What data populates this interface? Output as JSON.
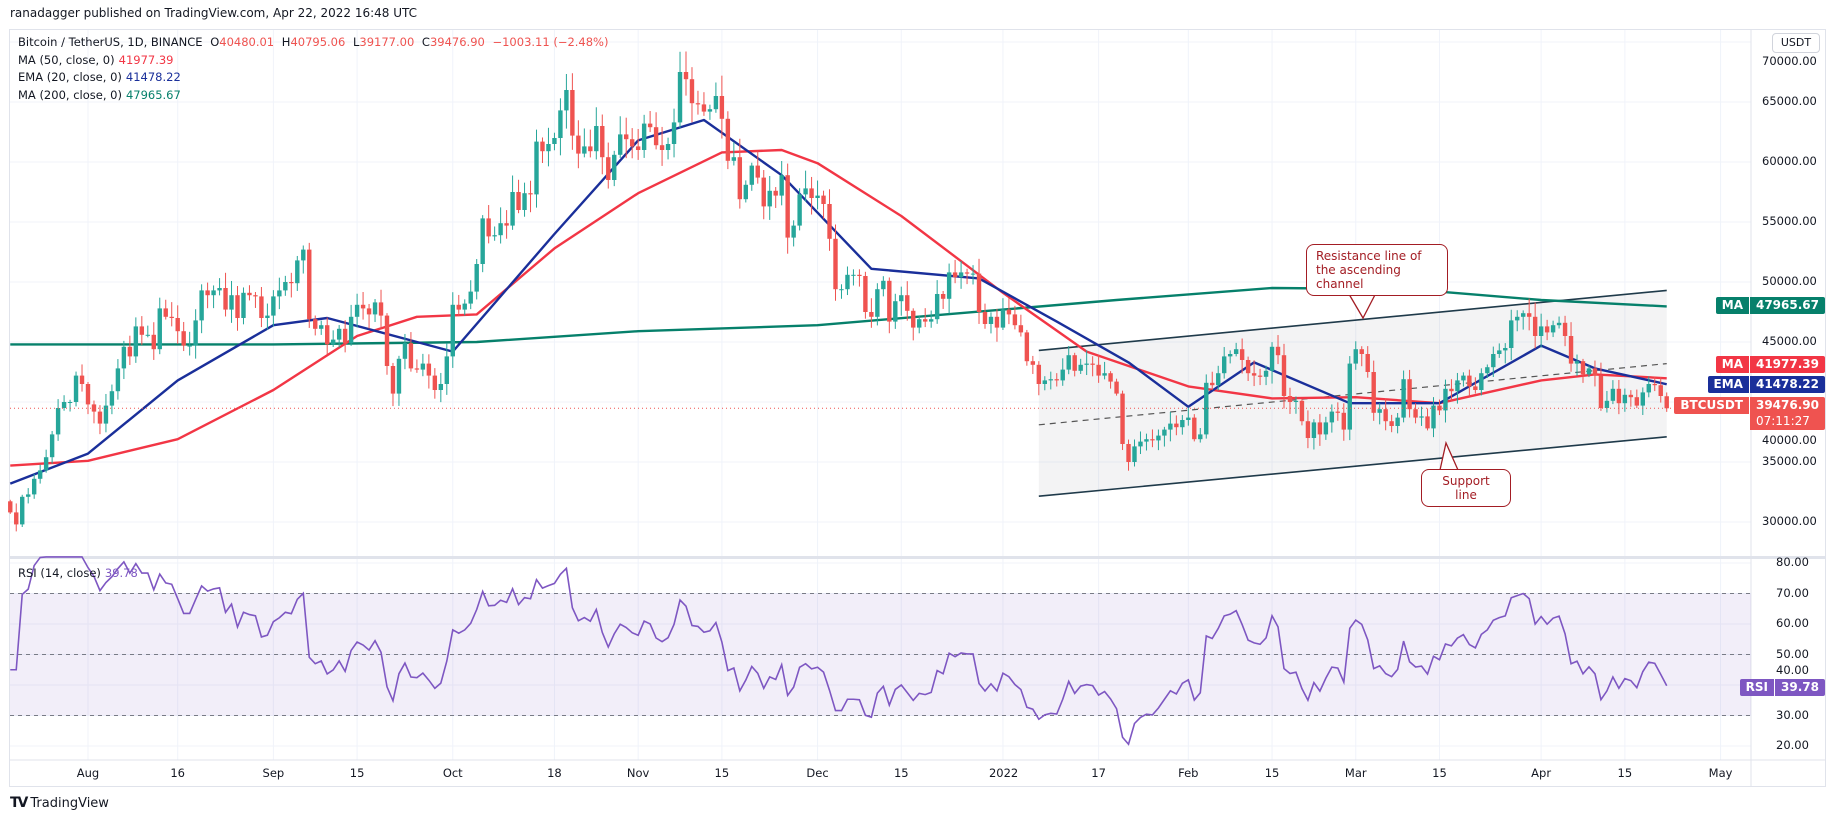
{
  "publisher": "ranadagger published on TradingView.com, Apr 22, 2022 16:48 UTC",
  "legend": {
    "symbol": "Bitcoin / TetherUS, 1D, BINANCE",
    "o_label": "O",
    "o": "40480.01",
    "h_label": "H",
    "h": "40795.06",
    "l_label": "L",
    "l": "39177.00",
    "c_label": "C",
    "c": "39476.90",
    "change": "−1003.11 (−2.48%)",
    "ma50": {
      "label": "MA (50, close, 0)",
      "value": "41977.39"
    },
    "ema20": {
      "label": "EMA (20, close, 0)",
      "value": "41478.22"
    },
    "ma200": {
      "label": "MA (200, close, 0)",
      "value": "47965.67"
    },
    "rsi": {
      "label": "RSI (14, close)",
      "value": "39.78"
    }
  },
  "currency_button": "USDT",
  "price_tags": {
    "ma200": {
      "name": "MA",
      "value": "47965.67"
    },
    "ma50": {
      "name": "MA",
      "value": "41977.39"
    },
    "ema20": {
      "name": "EMA",
      "value": "41478.22"
    },
    "last": {
      "name": "BTCUSDT",
      "value": "39476.90",
      "countdown": "07:11:27"
    },
    "rsi": {
      "name": "RSI",
      "value": "39.78"
    }
  },
  "annotations": {
    "resistance": "Resistance line of the ascending channel",
    "support": "Support line"
  },
  "footer": {
    "brand": "TradingView"
  },
  "colors": {
    "up": "#26a69a",
    "down": "#ef5350",
    "ma50": "#f23645",
    "ema20": "#1a2f9a",
    "ma200": "#06806b",
    "rsi": "#7e57c2",
    "channel": "#1f3a4a",
    "callout": "#a31d24"
  },
  "chart_data": [
    {
      "type": "candlestick",
      "title": "Bitcoin / TetherUS, 1D, BINANCE",
      "ylim": [
        28000,
        70000
      ],
      "y_ticks": [
        70000,
        65000,
        60000,
        55000,
        50000,
        45000,
        40000,
        35000,
        30000
      ],
      "y_tick_labels": [
        "70000.00",
        "65000.00",
        "60000.00",
        "55000.00",
        "50000.00",
        "45000.00",
        "40000.00",
        "35000.00",
        "30000.00"
      ],
      "x_ticks": [
        {
          "date": "2021-08-01",
          "label": "Aug"
        },
        {
          "date": "2021-08-16",
          "label": "16"
        },
        {
          "date": "2021-09-01",
          "label": "Sep"
        },
        {
          "date": "2021-09-15",
          "label": "15"
        },
        {
          "date": "2021-10-01",
          "label": "Oct"
        },
        {
          "date": "2021-10-18",
          "label": "18"
        },
        {
          "date": "2021-11-01",
          "label": "Nov"
        },
        {
          "date": "2021-11-15",
          "label": "15"
        },
        {
          "date": "2021-12-01",
          "label": "Dec"
        },
        {
          "date": "2021-12-15",
          "label": "15"
        },
        {
          "date": "2022-01-01",
          "label": "2022"
        },
        {
          "date": "2022-01-17",
          "label": "17"
        },
        {
          "date": "2022-02-01",
          "label": "Feb"
        },
        {
          "date": "2022-02-15",
          "label": "15"
        },
        {
          "date": "2022-03-01",
          "label": "Mar"
        },
        {
          "date": "2022-03-15",
          "label": "15"
        },
        {
          "date": "2022-04-01",
          "label": "Apr"
        },
        {
          "date": "2022-04-15",
          "label": "15"
        },
        {
          "date": "2022-05-01",
          "label": "May"
        }
      ],
      "daily_closes": [
        {
          "month": "2021-07",
          "first_day": 19,
          "closes": [
            30800,
            29800,
            32100,
            32300,
            33600,
            34300,
            35400,
            37300,
            39500,
            40000,
            40000,
            42200,
            41500
          ]
        },
        {
          "month": "2021-08",
          "first_day": 1,
          "closes": [
            39800,
            39200,
            38200,
            39700,
            40900,
            42800,
            44600,
            43800,
            46300,
            45600,
            45600,
            44400,
            47800,
            47100,
            47000,
            45900,
            44700,
            44700,
            46800,
            49300,
            48900,
            49300,
            49500,
            47700,
            48900,
            47000,
            49100,
            48900,
            48800,
            47000,
            47200
          ]
        },
        {
          "month": "2021-09",
          "first_day": 1,
          "closes": [
            48800,
            49300,
            50000,
            49900,
            51800,
            52700,
            46900,
            46100,
            46400,
            44800,
            45200,
            46100,
            44900,
            47100,
            48100,
            47800,
            47300,
            48300,
            47200,
            43000,
            40700,
            43600,
            44900,
            42800,
            42700,
            43200,
            42200,
            41000,
            41500,
            43800
          ]
        },
        {
          "month": "2021-10",
          "first_day": 1,
          "closes": [
            48100,
            47700,
            48200,
            49200,
            51500,
            55300,
            53800,
            53900,
            54900,
            54700,
            57500,
            56000,
            57400,
            57300,
            61700,
            60900,
            61500,
            62000,
            64300,
            66000,
            62200,
            60700,
            61300,
            60900,
            63000,
            60400,
            58500,
            60600,
            62300,
            61900,
            61300
          ]
        },
        {
          "month": "2021-11",
          "first_day": 1,
          "closes": [
            61000,
            63200,
            62900,
            61400,
            61000,
            61500,
            63300,
            67500,
            66900,
            64900,
            64800,
            64200,
            64400,
            65500,
            63600,
            60100,
            60400,
            56900,
            58100,
            59700,
            58700,
            56300,
            57600,
            57200,
            58900,
            53700,
            54700,
            57300,
            57800,
            57000
          ]
        },
        {
          "month": "2021-12",
          "first_day": 1,
          "closes": [
            57200,
            56500,
            53600,
            49400,
            49400,
            50600,
            50600,
            50500,
            47500,
            47100,
            49400,
            50100,
            46700,
            48400,
            48900,
            47600,
            46200,
            46900,
            46700,
            46900,
            49000,
            48600,
            50800,
            50400,
            50800,
            50700,
            50700,
            47500,
            46500,
            47100,
            46200
          ]
        },
        {
          "month": "2022-01",
          "first_day": 1,
          "closes": [
            47700,
            47300,
            46400,
            45800,
            43400,
            43100,
            41500,
            41800,
            41900,
            41800,
            42700,
            43900,
            42600,
            43100,
            43200,
            43100,
            42200,
            42400,
            41700,
            40700,
            36500,
            35000,
            36300,
            36700,
            36900,
            36800,
            37200,
            37700,
            38200,
            37900,
            38500
          ]
        },
        {
          "month": "2022-02",
          "first_day": 1,
          "closes": [
            38700,
            36900,
            37300,
            41600,
            41400,
            42400,
            43800,
            44000,
            44400,
            43500,
            42400,
            42200,
            42100,
            42600,
            44600,
            43900,
            40500,
            40000,
            40100,
            38400,
            37000,
            38300,
            37300,
            38300,
            39200,
            39100,
            37700,
            43200
          ]
        },
        {
          "month": "2022-03",
          "first_day": 1,
          "closes": [
            44400,
            44000,
            42500,
            39100,
            39400,
            38400,
            38000,
            38700,
            41900,
            39400,
            38700,
            38800,
            37800,
            39700,
            39300,
            41100,
            40900,
            41800,
            42200,
            41300,
            41000,
            42400,
            42900,
            44000,
            44300,
            44500,
            46800,
            47100,
            47400,
            47100,
            45500
          ]
        },
        {
          "month": "2022-04",
          "first_day": 1,
          "closes": [
            46300,
            45800,
            46400,
            46600,
            45500,
            43200,
            43400,
            42300,
            42800,
            42200,
            39500,
            40100,
            41100,
            39900,
            40600,
            40400,
            39700,
            40800,
            41500,
            41400,
            40500,
            39476.9
          ]
        }
      ],
      "last_candle": {
        "open": 40480.01,
        "high": 40795.06,
        "low": 39177.0,
        "close": 39476.9
      },
      "series": [
        {
          "name": "MA (200, close, 0)",
          "color": "#06806b",
          "points": [
            [
              "2021-07-19",
              44800
            ],
            [
              "2021-09-01",
              44800
            ],
            [
              "2021-10-05",
              45000
            ],
            [
              "2021-11-01",
              45900
            ],
            [
              "2021-12-01",
              46400
            ],
            [
              "2022-01-01",
              47700
            ],
            [
              "2022-01-20",
              48500
            ],
            [
              "2022-02-15",
              49500
            ],
            [
              "2022-03-10",
              49400
            ],
            [
              "2022-04-01",
              48500
            ],
            [
              "2022-04-22",
              47965.67
            ]
          ]
        },
        {
          "name": "MA (50, close, 0)",
          "color": "#f23645",
          "points": [
            [
              "2021-07-19",
              34700
            ],
            [
              "2021-08-01",
              35100
            ],
            [
              "2021-08-16",
              36900
            ],
            [
              "2021-09-01",
              41000
            ],
            [
              "2021-09-15",
              45500
            ],
            [
              "2021-09-25",
              47100
            ],
            [
              "2021-10-05",
              47300
            ],
            [
              "2021-10-18",
              52800
            ],
            [
              "2021-11-01",
              57400
            ],
            [
              "2021-11-15",
              60800
            ],
            [
              "2021-11-25",
              61000
            ],
            [
              "2021-12-01",
              59900
            ],
            [
              "2021-12-15",
              55500
            ],
            [
              "2022-01-01",
              49100
            ],
            [
              "2022-01-15",
              44200
            ],
            [
              "2022-02-01",
              41300
            ],
            [
              "2022-02-15",
              40300
            ],
            [
              "2022-03-01",
              40400
            ],
            [
              "2022-03-15",
              39900
            ],
            [
              "2022-04-01",
              41800
            ],
            [
              "2022-04-10",
              42300
            ],
            [
              "2022-04-22",
              41977.39
            ]
          ]
        },
        {
          "name": "EMA (20, close, 0)",
          "color": "#1a2f9a",
          "points": [
            [
              "2021-07-19",
              33200
            ],
            [
              "2021-08-01",
              35700
            ],
            [
              "2021-08-16",
              41800
            ],
            [
              "2021-09-01",
              46400
            ],
            [
              "2021-09-10",
              47000
            ],
            [
              "2021-09-25",
              45000
            ],
            [
              "2021-10-01",
              44200
            ],
            [
              "2021-10-18",
              54000
            ],
            [
              "2021-11-01",
              61800
            ],
            [
              "2021-11-12",
              63500
            ],
            [
              "2021-11-25",
              58900
            ],
            [
              "2021-12-10",
              51100
            ],
            [
              "2021-12-28",
              50300
            ],
            [
              "2022-01-10",
              46700
            ],
            [
              "2022-01-22",
              43300
            ],
            [
              "2022-02-01",
              39600
            ],
            [
              "2022-02-12",
              43300
            ],
            [
              "2022-02-28",
              39900
            ],
            [
              "2022-03-15",
              39900
            ],
            [
              "2022-04-01",
              44700
            ],
            [
              "2022-04-10",
              42800
            ],
            [
              "2022-04-22",
              41478.22
            ]
          ]
        }
      ],
      "channel": {
        "upper": [
          [
            "2022-01-07",
            44300
          ],
          [
            "2022-04-22",
            49300
          ]
        ],
        "lower": [
          [
            "2022-01-07",
            32150
          ],
          [
            "2022-04-22",
            37100
          ]
        ],
        "middle_dashed": [
          [
            "2022-01-07",
            38100
          ],
          [
            "2022-04-22",
            43200
          ]
        ]
      },
      "last_price_line": 39476.9
    },
    {
      "type": "line",
      "title": "RSI (14, close)",
      "ylim": [
        17,
        82
      ],
      "y_ticks": [
        80,
        70,
        60,
        50,
        40,
        30,
        20
      ],
      "y_tick_labels": [
        "80.00",
        "70.00",
        "60.00",
        "50.00",
        "40.00",
        "30.00",
        "20.00"
      ],
      "band": [
        30,
        70
      ],
      "dashed_levels": [
        70,
        50,
        30
      ],
      "last_value": 39.78
    }
  ]
}
